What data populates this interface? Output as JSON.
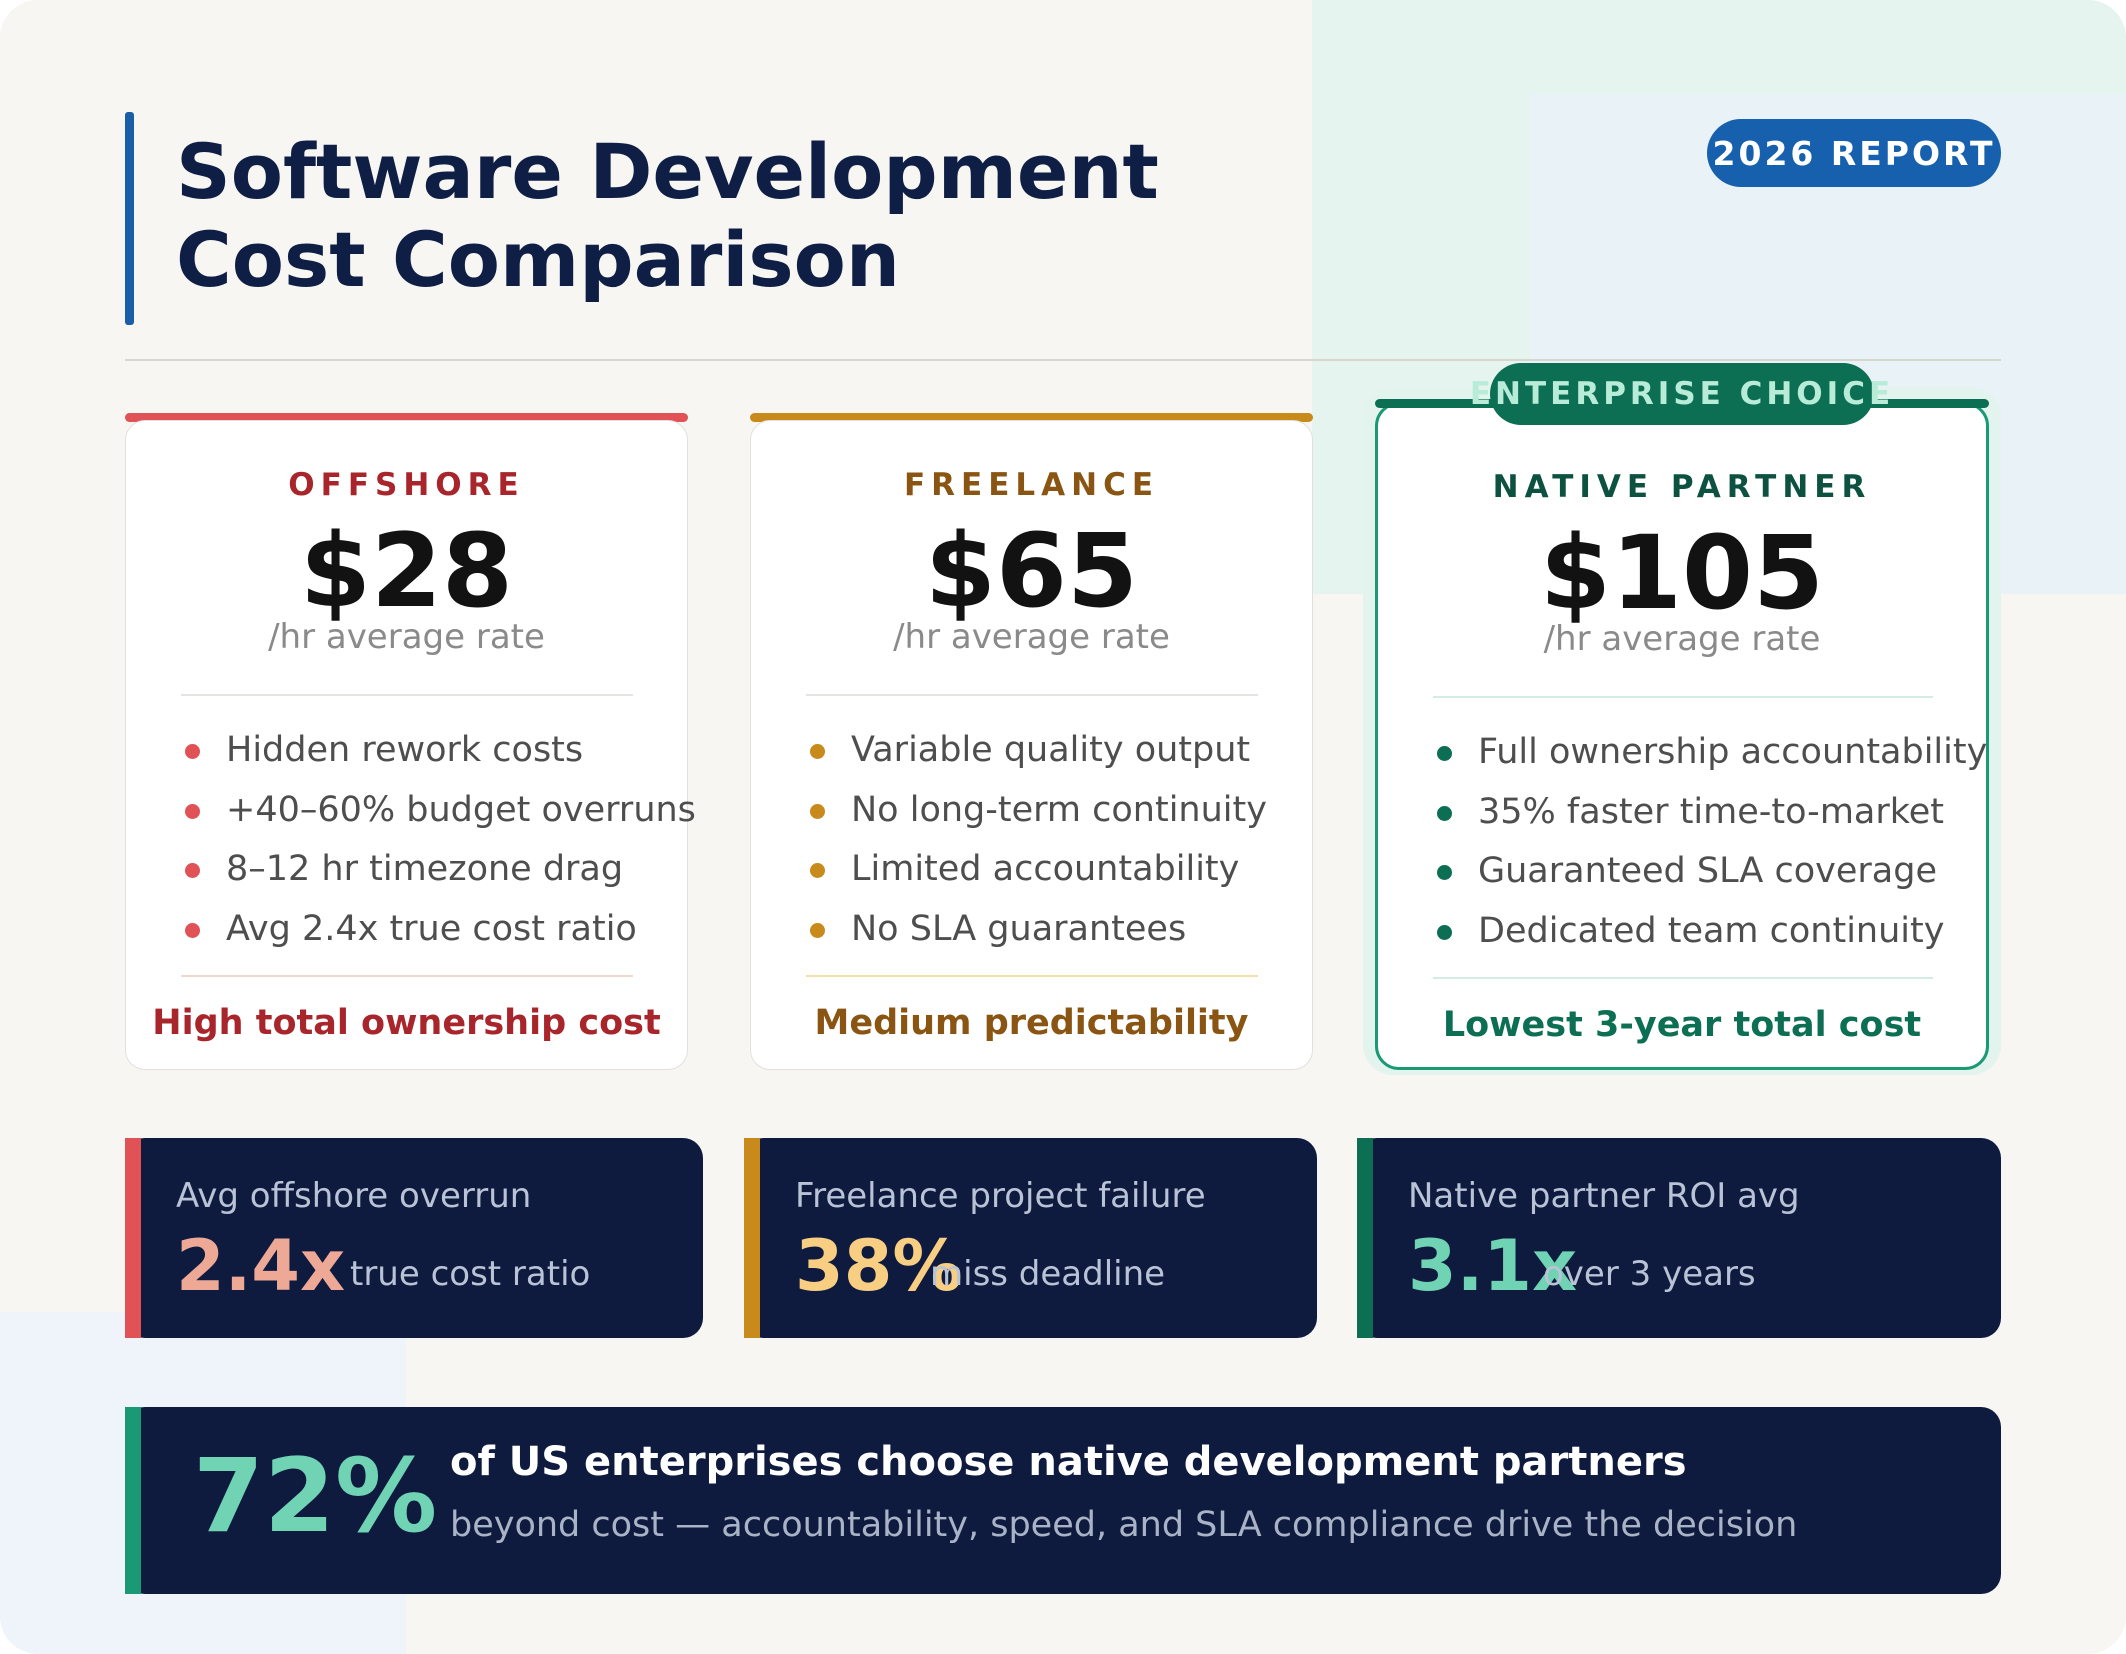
{
  "header": {
    "title_line1": "Software Development",
    "title_line2": "Cost Comparison",
    "report_badge": "2026 REPORT"
  },
  "cards": [
    {
      "tier": "OFFSHORE",
      "price": "$28",
      "rate_label": "/hr average rate",
      "bullets": [
        "Hidden rework costs",
        "+40–60% budget overruns",
        "8–12 hr timezone drag",
        "Avg 2.4x true cost ratio"
      ],
      "verdict": "High total ownership cost",
      "accent": "#e05255"
    },
    {
      "tier": "FREELANCE",
      "price": "$65",
      "rate_label": "/hr average rate",
      "bullets": [
        "Variable quality output",
        "No long-term continuity",
        "Limited accountability",
        "No SLA guarantees"
      ],
      "verdict": "Medium predictability",
      "accent": "#c88a1b"
    },
    {
      "badge": "ENTERPRISE CHOICE",
      "tier": "NATIVE PARTNER",
      "price": "$105",
      "rate_label": "/hr average rate",
      "bullets": [
        "Full ownership accountability",
        "35% faster time-to-market",
        "Guaranteed SLA coverage",
        "Dedicated team continuity"
      ],
      "verdict": "Lowest 3-year total cost",
      "accent": "#0c6f53"
    }
  ],
  "stats": [
    {
      "label": "Avg offshore overrun",
      "value": "2.4x",
      "sub": "true cost ratio"
    },
    {
      "label": "Freelance project failure",
      "value": "38%",
      "sub": "miss deadline"
    },
    {
      "label": "Native partner ROI avg",
      "value": "3.1x",
      "sub": "over 3 years"
    }
  ],
  "banner": {
    "value": "72%",
    "headline": "of US enterprises choose native development partners",
    "subline": "beyond cost — accountability, speed, and SLA compliance drive the decision"
  }
}
